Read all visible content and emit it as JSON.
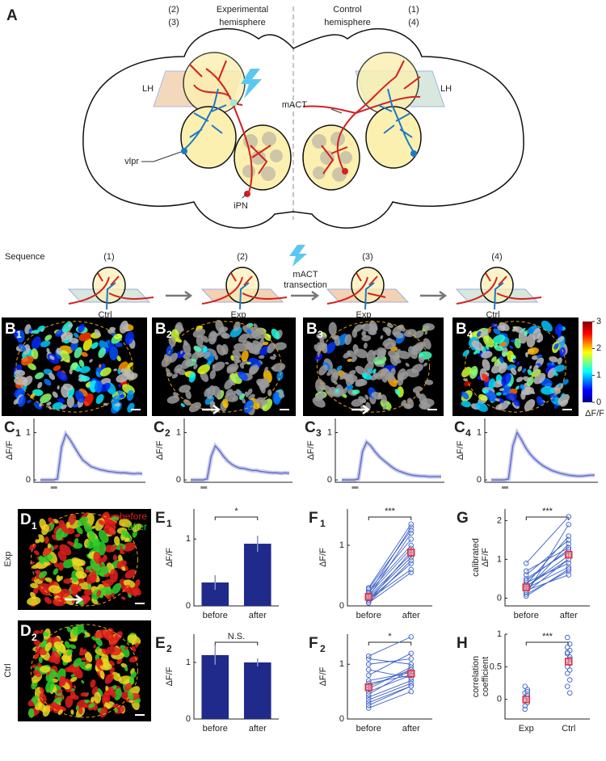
{
  "figure": {
    "panel_a": {
      "label": "A",
      "exp_steps": [
        "(2)",
        "(3)"
      ],
      "exp_title": [
        "Experimental",
        "hemisphere"
      ],
      "ctrl_title": [
        "Control",
        "hemisphere"
      ],
      "ctrl_steps": [
        "(1)",
        "(4)"
      ],
      "lh_labels": [
        "LH",
        "LH"
      ],
      "mact": "mACT",
      "vlpr": "vlpr",
      "ipn": "iPN"
    },
    "sequence": {
      "title": "Sequence",
      "steps": [
        "(1)",
        "(2)",
        "(3)",
        "(4)"
      ],
      "conditions": [
        "Ctrl",
        "Exp",
        "Exp",
        "Ctrl"
      ],
      "transection": [
        "mACT",
        "transection"
      ]
    },
    "images": {
      "b_panels": [
        {
          "letter": "B",
          "sub": "1"
        },
        {
          "letter": "B",
          "sub": "2"
        },
        {
          "letter": "B",
          "sub": "3"
        },
        {
          "letter": "B",
          "sub": "4"
        }
      ],
      "colorbar": {
        "lim": [
          0,
          3
        ],
        "ticks": [
          0,
          1,
          2,
          3
        ],
        "label": "ΔF/F"
      },
      "d_panels": [
        {
          "letter": "D",
          "sub": "1",
          "condition": "Exp"
        },
        {
          "letter": "D",
          "sub": "2",
          "condition": "Ctrl"
        }
      ],
      "legend": [
        "before",
        "after"
      ]
    }
  },
  "chart_data": [
    {
      "type": "line",
      "panel_letter": "C",
      "panel_sub": "1",
      "ylabel": [
        "ΔF/F"
      ],
      "ylim": [
        -0.05,
        1.3
      ],
      "yticks": [
        0,
        1
      ],
      "color": "#5b66c9",
      "values": [
        0,
        0,
        0,
        0,
        0.02,
        0.7,
        0.97,
        0.85,
        0.7,
        0.55,
        0.42,
        0.35,
        0.28,
        0.25,
        0.22,
        0.2,
        0.18,
        0.17,
        0.16,
        0.15,
        0.15,
        0.14,
        0.13,
        0.14,
        0.13
      ]
    },
    {
      "type": "line",
      "panel_letter": "C",
      "panel_sub": "2",
      "ylabel": [
        "ΔF/F"
      ],
      "ylim": [
        -0.05,
        1.3
      ],
      "yticks": [
        0,
        1
      ],
      "color": "#5b66c9",
      "values": [
        0,
        0,
        0,
        0,
        0.02,
        0.5,
        0.72,
        0.62,
        0.5,
        0.4,
        0.33,
        0.28,
        0.25,
        0.24,
        0.22,
        0.2,
        0.2,
        0.18,
        0.17,
        0.16,
        0.15,
        0.15,
        0.14,
        0.15,
        0.14
      ]
    },
    {
      "type": "line",
      "panel_letter": "C",
      "panel_sub": "3",
      "ylabel": [
        "ΔF/F"
      ],
      "ylim": [
        -0.05,
        1.3
      ],
      "yticks": [
        0,
        1
      ],
      "color": "#5b66c9",
      "values": [
        0,
        0,
        0,
        0,
        0.02,
        0.6,
        0.8,
        0.72,
        0.6,
        0.5,
        0.42,
        0.35,
        0.28,
        0.22,
        0.18,
        0.15,
        0.12,
        0.1,
        0.09,
        0.08,
        0.08,
        0.07,
        0.07,
        0.07,
        0.07
      ]
    },
    {
      "type": "line",
      "panel_letter": "C",
      "panel_sub": "4",
      "ylabel": [
        "ΔF/F"
      ],
      "ylim": [
        -0.05,
        1.3
      ],
      "yticks": [
        0,
        1
      ],
      "color": "#5b66c9",
      "values": [
        0,
        0,
        0,
        0,
        0.02,
        0.72,
        1.0,
        0.85,
        0.68,
        0.55,
        0.45,
        0.37,
        0.3,
        0.25,
        0.2,
        0.17,
        0.14,
        0.12,
        0.1,
        0.09,
        0.08,
        0.08,
        0.09,
        0.1,
        0.1
      ]
    },
    {
      "type": "bar",
      "panel_letter": "E",
      "panel_sub": "1",
      "ylabel": [
        "ΔF/F"
      ],
      "ylim": [
        0,
        1.45
      ],
      "yticks": [
        0,
        1
      ],
      "color": "#1f2a8a",
      "categories": [
        "before",
        "after"
      ],
      "values": [
        0.35,
        0.93
      ],
      "errors": [
        0.11,
        0.12
      ],
      "significance": "*"
    },
    {
      "type": "bar",
      "panel_letter": "E",
      "panel_sub": "2",
      "ylabel": [
        "ΔF/F"
      ],
      "ylim": [
        0,
        1.5
      ],
      "yticks": [
        0,
        1
      ],
      "color": "#1f2a8a",
      "categories": [
        "before",
        "after"
      ],
      "values": [
        1.13,
        1.0
      ],
      "errors": [
        0.17,
        0.07
      ],
      "significance": "N.S."
    },
    {
      "type": "paired",
      "panel_letter": "F",
      "panel_sub": "1",
      "ylabel": [
        "ΔF/F"
      ],
      "ylim": [
        0,
        1.6
      ],
      "yticks": [
        0,
        1
      ],
      "color": "#3a5fc8",
      "categories": [
        "before",
        "after"
      ],
      "points": [
        [
          0.05,
          0.1,
          0.12,
          0.2,
          0.15,
          0.08,
          0.25,
          0.3,
          0.18,
          0.1,
          0.22,
          0.05,
          0.15,
          0.28
        ],
        [
          0.55,
          0.7,
          0.8,
          1.3,
          1.2,
          0.9,
          1.1,
          1.35,
          0.95,
          0.6,
          1.0,
          0.75,
          0.85,
          1.25
        ]
      ],
      "means": [
        0.15,
        0.88
      ],
      "mean_errors": [
        0.05,
        0.08
      ],
      "significance": "***"
    },
    {
      "type": "paired",
      "panel_letter": "F",
      "panel_sub": "2",
      "ylabel": [
        "ΔF/F"
      ],
      "ylim": [
        0,
        1.55
      ],
      "yticks": [
        0,
        1
      ],
      "color": "#3a5fc8",
      "categories": [
        "before",
        "after"
      ],
      "points": [
        [
          0.3,
          0.5,
          0.6,
          1.1,
          1.15,
          0.8,
          0.4,
          0.2,
          0.7,
          0.9,
          0.55,
          0.35,
          0.65,
          1.0,
          0.45,
          0.25
        ],
        [
          0.6,
          0.8,
          0.9,
          1.0,
          1.5,
          1.2,
          0.7,
          0.5,
          0.85,
          0.75,
          0.95,
          0.65,
          0.8,
          1.1,
          0.9,
          0.6
        ]
      ],
      "means": [
        0.58,
        0.83
      ],
      "mean_errors": [
        0.08,
        0.07
      ],
      "significance": "*"
    },
    {
      "type": "paired",
      "panel_letter": "G",
      "ylabel": [
        "calibrated",
        "ΔF/F"
      ],
      "ylim": [
        -0.2,
        2.3
      ],
      "yticks": [
        0,
        1,
        2
      ],
      "color": "#3a5fc8",
      "categories": [
        "before",
        "after"
      ],
      "points": [
        [
          0.9,
          0.1,
          0.2,
          0.3,
          0.5,
          0.4,
          0.6,
          0.1,
          0.2,
          0.3,
          0.7,
          0.25,
          0.35,
          0.15,
          0.45,
          0.05
        ],
        [
          2.1,
          1.9,
          1.4,
          1.0,
          1.2,
          0.9,
          1.5,
          0.7,
          0.6,
          1.1,
          1.3,
          0.8,
          1.6,
          1.0,
          1.25,
          0.75
        ]
      ],
      "means": [
        0.28,
        1.12
      ],
      "mean_errors": [
        0.07,
        0.1
      ],
      "significance": "***"
    },
    {
      "type": "strip",
      "panel_letter": "H",
      "ylabel": [
        "correlation",
        "coefficient"
      ],
      "ylim": [
        -0.3,
        1
      ],
      "yticks": [
        0,
        0.5,
        1
      ],
      "color": "#3a5fc8",
      "categories": [
        "Exp",
        "Ctrl"
      ],
      "points": [
        [
          0.2,
          0.15,
          0.1,
          0.05,
          0,
          -0.05,
          -0.1,
          0.08,
          -0.02,
          0.12,
          -0.15
        ],
        [
          0.95,
          0.85,
          0.8,
          0.75,
          0.7,
          0.65,
          0.6,
          0.55,
          0.5,
          0.45,
          0.4,
          0.3,
          0.2,
          0.1,
          0.72,
          0.62
        ]
      ],
      "means": [
        0,
        0.58
      ],
      "mean_errors": [
        0.03,
        0.05
      ],
      "significance": "***"
    }
  ]
}
